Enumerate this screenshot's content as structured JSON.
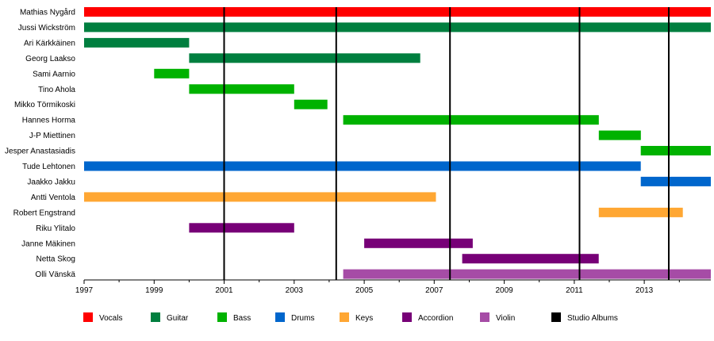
{
  "chart_data": {
    "type": "timeline",
    "title": "",
    "xlabel": "",
    "ylabel": "",
    "x_range": [
      1997,
      2014.9
    ],
    "x_tick_labels": [
      "1997",
      "1999",
      "2001",
      "2003",
      "2005",
      "2007",
      "2009",
      "2011",
      "2013"
    ],
    "x_tick_values": [
      1997,
      1999,
      2001,
      2003,
      2005,
      2007,
      2009,
      2011,
      2013
    ],
    "x_minor_tick_values": [
      1998,
      2000,
      2002,
      2004,
      2006,
      2008,
      2010,
      2012,
      2014
    ],
    "grid": false,
    "legend_position": "bottom",
    "colors": {
      "Vocals": "#ff0000",
      "Guitar": "#007f3f",
      "Bass": "#00b200",
      "Drums": "#0066cc",
      "Keys": "#ffa733",
      "Accordion": "#770077",
      "Violin": "#a64ca6",
      "Studio Albums": "#000000"
    },
    "members": [
      {
        "name": "Mathias Nygård",
        "bars": [
          {
            "role": "Vocals",
            "start": 1997,
            "end": 2014.9
          }
        ]
      },
      {
        "name": "Jussi Wickström",
        "bars": [
          {
            "role": "Guitar",
            "start": 1997,
            "end": 2014.9
          }
        ]
      },
      {
        "name": "Ari Kärkkäinen",
        "bars": [
          {
            "role": "Guitar",
            "start": 1997,
            "end": 2000
          }
        ]
      },
      {
        "name": "Georg Laakso",
        "bars": [
          {
            "role": "Guitar",
            "start": 2000,
            "end": 2006.6
          }
        ]
      },
      {
        "name": "Sami Aarnio",
        "bars": [
          {
            "role": "Bass",
            "start": 1999,
            "end": 2000
          }
        ]
      },
      {
        "name": "Tino Ahola",
        "bars": [
          {
            "role": "Bass",
            "start": 2000,
            "end": 2003
          }
        ]
      },
      {
        "name": "Mikko Törmikoski",
        "bars": [
          {
            "role": "Bass",
            "start": 2003,
            "end": 2003.95
          }
        ]
      },
      {
        "name": "Hannes Horma",
        "bars": [
          {
            "role": "Bass",
            "start": 2004.4,
            "end": 2011.7
          }
        ]
      },
      {
        "name": "J-P Miettinen",
        "bars": [
          {
            "role": "Bass",
            "start": 2011.7,
            "end": 2012.9
          }
        ]
      },
      {
        "name": "Jesper Anastasiadis",
        "bars": [
          {
            "role": "Bass",
            "start": 2012.9,
            "end": 2014.9
          }
        ]
      },
      {
        "name": "Tude Lehtonen",
        "bars": [
          {
            "role": "Drums",
            "start": 1997,
            "end": 2012.9
          }
        ]
      },
      {
        "name": "Jaakko Jakku",
        "bars": [
          {
            "role": "Drums",
            "start": 2012.9,
            "end": 2014.9
          }
        ]
      },
      {
        "name": "Antti Ventola",
        "bars": [
          {
            "role": "Keys",
            "start": 1997,
            "end": 2007.05
          }
        ]
      },
      {
        "name": "Robert Engstrand",
        "bars": [
          {
            "role": "Keys",
            "start": 2011.7,
            "end": 2014.1
          }
        ]
      },
      {
        "name": "Riku Ylitalo",
        "bars": [
          {
            "role": "Accordion",
            "start": 2000,
            "end": 2003
          }
        ]
      },
      {
        "name": "Janne Mäkinen",
        "bars": [
          {
            "role": "Accordion",
            "start": 2005,
            "end": 2008.1
          }
        ]
      },
      {
        "name": "Netta Skog",
        "bars": [
          {
            "role": "Accordion",
            "start": 2007.8,
            "end": 2011.7
          }
        ]
      },
      {
        "name": "Olli Vänskä",
        "bars": [
          {
            "role": "Violin",
            "start": 2004.4,
            "end": 2014.9
          }
        ]
      }
    ],
    "studio_albums": [
      2001,
      2004.2,
      2007.45,
      2011.15,
      2013.7
    ],
    "legend": [
      {
        "label": "Vocals",
        "role": "Vocals"
      },
      {
        "label": "Guitar",
        "role": "Guitar"
      },
      {
        "label": "Bass",
        "role": "Bass"
      },
      {
        "label": "Drums",
        "role": "Drums"
      },
      {
        "label": "Keys",
        "role": "Keys"
      },
      {
        "label": "Accordion",
        "role": "Accordion"
      },
      {
        "label": "Violin",
        "role": "Violin"
      },
      {
        "label": "Studio Albums",
        "role": "Studio Albums"
      }
    ]
  }
}
